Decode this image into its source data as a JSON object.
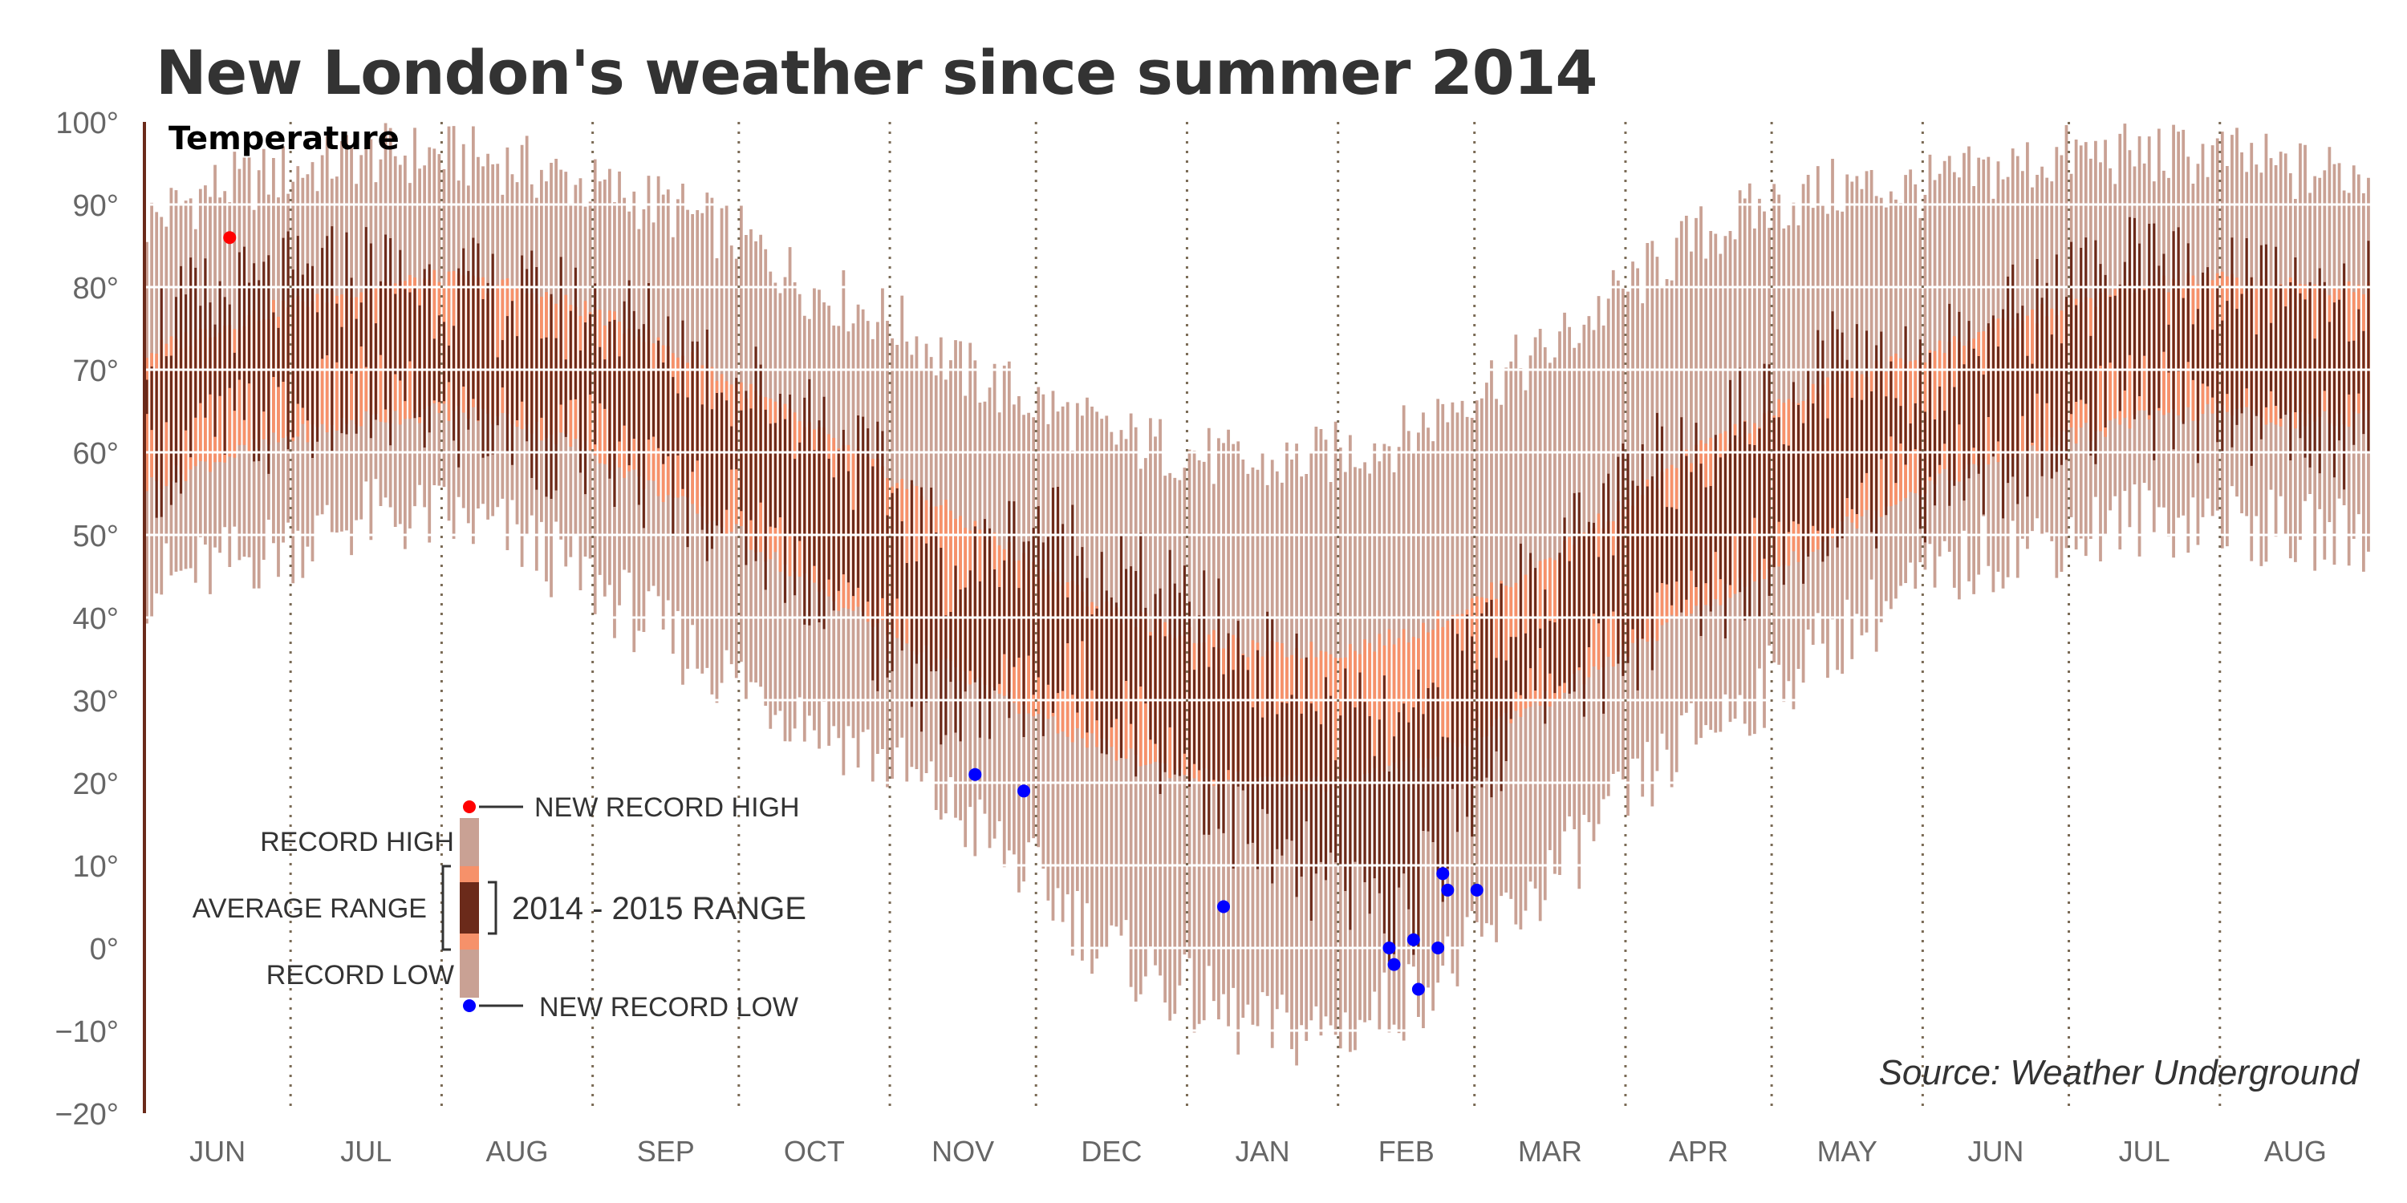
{
  "title": "New London's weather since summer 2014",
  "source": "Source: Weather Underground",
  "colors": {
    "record_range": "#c9a194",
    "average_range": "#f6916a",
    "actual_range": "#6b2a1a",
    "new_record_high": "#ff0000",
    "new_record_low": "#0000ff",
    "gridline": "#ffffff",
    "month_divider": "#7a6a55"
  },
  "chart_data": {
    "type": "bar",
    "subtitle": "Temperature",
    "y_tick_labels": [
      "100°",
      "90°",
      "80°",
      "70°",
      "60°",
      "50°",
      "40°",
      "30°",
      "20°",
      "10°",
      "0°",
      "−10°",
      "−20°"
    ],
    "ylim": [
      -20,
      100
    ],
    "months": [
      "JUN",
      "JUL",
      "AUG",
      "SEP",
      "OCT",
      "NOV",
      "DEC",
      "JAN",
      "FEB",
      "MAR",
      "APR",
      "MAY",
      "JUN",
      "JUL",
      "AUG"
    ],
    "series": [
      {
        "name": "RECORD HIGH / RECORD LOW",
        "x": [
          "Jun 1",
          "Jun 15",
          "Jul 1",
          "Jul 15",
          "Aug 1",
          "Aug 15",
          "Sep 1",
          "Sep 15",
          "Oct 1",
          "Oct 15",
          "Nov 1",
          "Nov 15",
          "Dec 1",
          "Dec 15",
          "Jan 1",
          "Jan 15",
          "Feb 1",
          "Feb 15",
          "Mar 1",
          "Mar 15",
          "Apr 1",
          "Apr 15",
          "May 1",
          "May 15",
          "Jun 1",
          "Jun 15",
          "Jul 1",
          "Jul 15",
          "Aug 1",
          "Aug 15"
        ],
        "high": [
          88,
          92,
          94,
          96,
          96,
          95,
          92,
          90,
          86,
          80,
          76,
          70,
          66,
          62,
          60,
          58,
          60,
          62,
          68,
          72,
          80,
          86,
          90,
          92,
          92,
          94,
          96,
          96,
          96,
          94
        ],
        "low": [
          44,
          46,
          49,
          52,
          52,
          50,
          44,
          38,
          32,
          28,
          22,
          16,
          8,
          0,
          -6,
          -10,
          -10,
          -6,
          0,
          8,
          18,
          26,
          32,
          38,
          44,
          48,
          50,
          52,
          52,
          50
        ]
      },
      {
        "name": "AVERAGE RANGE",
        "x": [
          "Jun 1",
          "Jun 15",
          "Jul 1",
          "Jul 15",
          "Aug 1",
          "Aug 15",
          "Sep 1",
          "Sep 15",
          "Oct 1",
          "Oct 15",
          "Nov 1",
          "Nov 15",
          "Dec 1",
          "Dec 15",
          "Jan 1",
          "Jan 15",
          "Feb 1",
          "Feb 15",
          "Mar 1",
          "Mar 15",
          "Apr 1",
          "Apr 15",
          "May 1",
          "May 15",
          "Jun 1",
          "Jun 15",
          "Jul 1",
          "Jul 15",
          "Aug 1",
          "Aug 15"
        ],
        "high": [
          72,
          75,
          78,
          80,
          81,
          80,
          77,
          73,
          68,
          63,
          57,
          52,
          46,
          41,
          38,
          36,
          36,
          38,
          42,
          47,
          54,
          60,
          65,
          69,
          72,
          75,
          78,
          80,
          81,
          80
        ],
        "low": [
          56,
          59,
          62,
          64,
          65,
          64,
          60,
          55,
          50,
          44,
          38,
          33,
          28,
          24,
          21,
          20,
          20,
          22,
          26,
          30,
          36,
          41,
          46,
          51,
          56,
          59,
          62,
          64,
          65,
          64
        ]
      },
      {
        "name": "2014 - 2015 RANGE",
        "x": [
          "Jun 1",
          "Jun 15",
          "Jul 1",
          "Jul 15",
          "Aug 1",
          "Aug 15",
          "Sep 1",
          "Sep 15",
          "Oct 1",
          "Oct 15",
          "Nov 1",
          "Nov 15",
          "Dec 1",
          "Dec 15",
          "Jan 1",
          "Jan 15",
          "Feb 1",
          "Feb 15",
          "Mar 1",
          "Mar 15",
          "Apr 1",
          "Apr 15",
          "May 1",
          "May 15",
          "Jun 1",
          "Jun 15",
          "Jul 1",
          "Jul 15",
          "Aug 1",
          "Aug 15"
        ],
        "high": [
          75,
          78,
          80,
          82,
          80,
          78,
          77,
          74,
          68,
          65,
          55,
          45,
          52,
          46,
          40,
          35,
          28,
          25,
          38,
          45,
          55,
          62,
          66,
          72,
          70,
          75,
          80,
          82,
          80,
          80
        ],
        "low": [
          58,
          62,
          64,
          66,
          64,
          62,
          60,
          56,
          52,
          45,
          36,
          28,
          32,
          30,
          22,
          12,
          6,
          4,
          20,
          32,
          36,
          42,
          48,
          54,
          56,
          58,
          62,
          66,
          65,
          62
        ]
      }
    ],
    "new_record_highs": [
      {
        "x": "Jun 18",
        "y": 86
      }
    ],
    "new_record_lows": [
      {
        "x": "Nov 18",
        "y": 21
      },
      {
        "x": "Nov 28",
        "y": 19
      },
      {
        "x": "Jan 8",
        "y": 5
      },
      {
        "x": "Feb 11",
        "y": 0
      },
      {
        "x": "Feb 12",
        "y": -2
      },
      {
        "x": "Feb 16",
        "y": 1
      },
      {
        "x": "Feb 17",
        "y": -5
      },
      {
        "x": "Feb 21",
        "y": 0
      },
      {
        "x": "Feb 22",
        "y": 9
      },
      {
        "x": "Feb 23",
        "y": 7
      },
      {
        "x": "Feb 29",
        "y": 7
      }
    ],
    "legend": {
      "record_high": "RECORD HIGH",
      "record_low": "RECORD LOW",
      "average_range": "AVERAGE RANGE",
      "actual_range": "2014 - 2015 RANGE",
      "new_record_high": "NEW RECORD HIGH",
      "new_record_low": "NEW RECORD LOW"
    }
  }
}
